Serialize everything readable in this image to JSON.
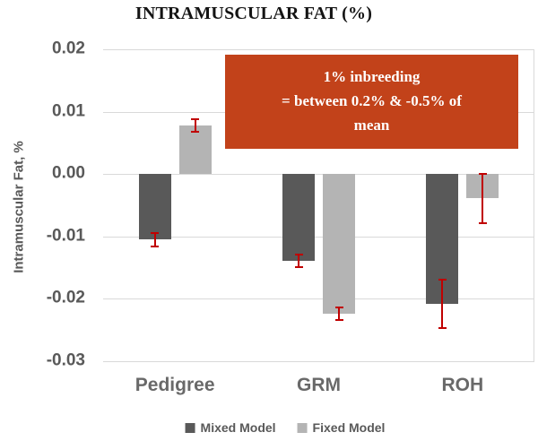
{
  "chart_data": {
    "type": "bar",
    "title": "INTRAMUSCULAR FAT (%)",
    "ylabel": "Intramuscular Fat, %",
    "xlabel": "",
    "categories": [
      "Pedigree",
      "GRM",
      "ROH"
    ],
    "series": [
      {
        "name": "Mixed Model",
        "color": "#595959",
        "values": [
          -0.0105,
          -0.0139,
          -0.0208
        ],
        "errors": [
          0.0012,
          0.0012,
          0.004
        ]
      },
      {
        "name": "Fixed Model",
        "color": "#B4B4B4",
        "values": [
          0.0078,
          -0.0224,
          -0.0039
        ],
        "errors": [
          0.0012,
          0.0012,
          0.0041
        ]
      }
    ],
    "ylim": [
      -0.03,
      0.02
    ],
    "yticks": [
      "0.02",
      "0.01",
      "0.00",
      "-0.01",
      "-0.02",
      "-0.03"
    ],
    "grid": true,
    "legend_position": "bottom",
    "gridline_color": "#D9D9D9",
    "error_bar_color": "#C00000",
    "axis_text_color": "#595959"
  },
  "annotation": {
    "lines": [
      "1% inbreeding",
      "= between 0.2% & -0.5% of",
      "mean"
    ],
    "background_color": "#C2421A",
    "text_color": "#FFFFFF"
  }
}
